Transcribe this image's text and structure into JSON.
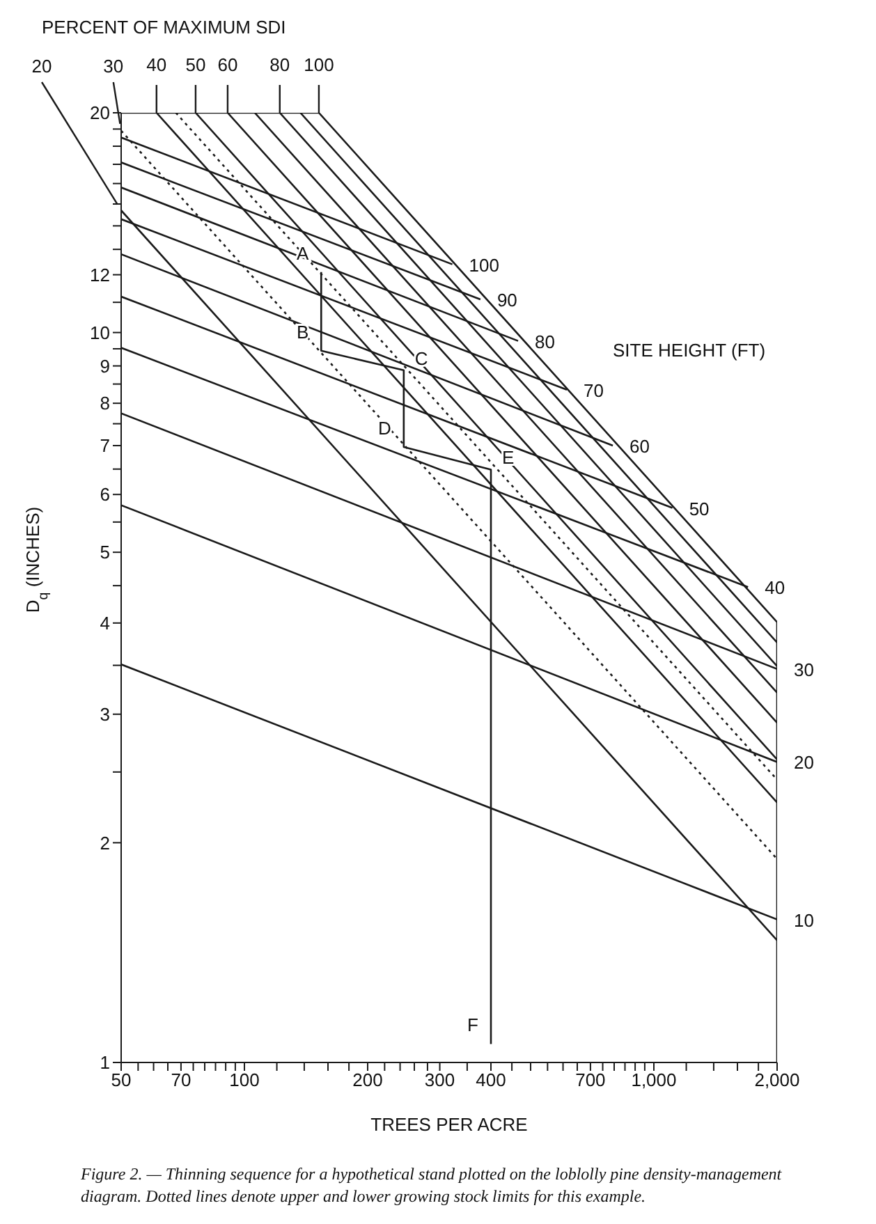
{
  "chart_data": {
    "type": "line",
    "xlabel": "TREES PER ACRE",
    "ylabel": "D$_{q}$ (INCHES)",
    "log": "xy",
    "color": "#1a1a1a",
    "marker": "none",
    "xlim": [
      50,
      2000
    ],
    "ylim": [
      1,
      20
    ],
    "xticks": [
      50,
      {
        "value": 55,
        "label": null
      },
      {
        "value": 60,
        "label": null
      },
      {
        "value": 65,
        "label": null
      },
      70,
      {
        "value": 75,
        "label": null
      },
      {
        "value": 80,
        "label": null
      },
      {
        "value": 85,
        "label": null
      },
      {
        "value": 90,
        "label": null
      },
      {
        "value": 95,
        "label": null
      },
      100,
      {
        "value": 120,
        "label": null
      },
      {
        "value": 140,
        "label": null
      },
      {
        "value": 160,
        "label": null
      },
      {
        "value": 180,
        "label": null
      },
      200,
      {
        "value": 220,
        "label": null
      },
      {
        "value": 240,
        "label": null
      },
      {
        "value": 260,
        "label": null
      },
      {
        "value": 280,
        "label": null
      },
      300,
      {
        "value": 350,
        "label": null
      },
      400,
      {
        "value": 450,
        "label": null
      },
      {
        "value": 500,
        "label": null
      },
      {
        "value": 550,
        "label": null
      },
      {
        "value": 600,
        "label": null
      },
      {
        "value": 650,
        "label": null
      },
      700,
      {
        "value": 750,
        "label": null
      },
      {
        "value": 800,
        "label": null
      },
      {
        "value": 850,
        "label": null
      },
      {
        "value": 900,
        "label": null
      },
      {
        "value": 950,
        "label": null
      },
      {
        "value": 1000,
        "label": "1,000"
      },
      {
        "value": 1200,
        "label": null
      },
      {
        "value": 1400,
        "label": null
      },
      {
        "value": 1600,
        "label": null
      },
      {
        "value": 1800,
        "label": null
      },
      {
        "value": 2000,
        "label": "2,000"
      }
    ],
    "yticks": [
      1,
      2,
      {
        "value": 2.5,
        "label": null
      },
      3,
      {
        "value": 3.5,
        "label": null
      },
      4,
      {
        "value": 4.5,
        "label": null
      },
      5,
      {
        "value": 5.5,
        "label": null
      },
      6,
      {
        "value": 6.5,
        "label": null
      },
      7,
      {
        "value": 7.5,
        "label": null
      },
      8,
      {
        "value": 8.5,
        "label": null
      },
      9,
      {
        "value": 9.5,
        "label": null
      },
      10,
      {
        "value": 11,
        "label": null
      },
      12,
      {
        "value": 13,
        "label": null
      },
      {
        "value": 14,
        "label": null
      },
      {
        "value": 15,
        "label": null
      },
      {
        "value": 16,
        "label": null
      },
      {
        "value": 17,
        "label": null
      },
      {
        "value": 18,
        "label": null
      },
      {
        "value": 19,
        "label": null
      },
      20
    ],
    "series": [
      {
        "name": "100",
        "x": [
          50,
          322
        ],
        "values": [
          18.5,
          12.4
        ]
      },
      {
        "name": "90",
        "x": [
          50,
          377
        ],
        "values": [
          17.1,
          11.1
        ]
      },
      {
        "name": "80",
        "x": [
          50,
          466
        ],
        "values": [
          15.8,
          9.74
        ]
      },
      {
        "name": "70",
        "x": [
          50,
          613
        ],
        "values": [
          14.3,
          8.35
        ]
      },
      {
        "name": "60",
        "x": [
          50,
          794
        ],
        "values": [
          12.8,
          7.0
        ]
      },
      {
        "name": "50",
        "x": [
          50,
          1110
        ],
        "values": [
          11.2,
          5.75
        ]
      },
      {
        "name": "40",
        "x": [
          50,
          1698
        ],
        "values": [
          9.53,
          4.48
        ]
      },
      {
        "name": "30",
        "x": [
          50,
          2000
        ],
        "values": [
          7.75,
          3.46
        ]
      },
      {
        "name": "20",
        "x": [
          50,
          2000
        ],
        "values": [
          5.8,
          2.58
        ]
      },
      {
        "name": "10",
        "x": [
          50,
          2000
        ],
        "values": [
          3.51,
          1.57
        ]
      },
      {
        "name": "20",
        "x": [
          50,
          2000
        ],
        "values": [
          14.7,
          1.47
        ]
      },
      {
        "name": "30",
        "x": [
          50,
          2000
        ],
        "values": [
          18.9,
          1.9
        ],
        "line_style": "dotted"
      },
      {
        "name": "40",
        "x": [
          61,
          2000
        ],
        "values": [
          20,
          2.27
        ]
      },
      {
        "x": [
          68,
          2000
        ],
        "values": [
          20,
          2.44
        ],
        "line_style": "dotted"
      },
      {
        "name": "50",
        "x": [
          76,
          2000
        ],
        "values": [
          20,
          2.6
        ]
      },
      {
        "name": "60",
        "x": [
          91,
          2000
        ],
        "values": [
          20,
          2.92
        ]
      },
      {
        "x": [
          106,
          2000
        ],
        "values": [
          20,
          3.21
        ]
      },
      {
        "name": "80",
        "x": [
          122,
          2000
        ],
        "values": [
          20,
          3.49
        ]
      },
      {
        "x": [
          137,
          2000
        ],
        "values": [
          20,
          3.76
        ]
      },
      {
        "name": "100",
        "x": [
          152,
          2000,
          2000
        ],
        "values": [
          20,
          4.01,
          1
        ]
      },
      {
        "x": [
          50,
          152
        ],
        "values": [
          20,
          20
        ]
      },
      {
        "x": [
          154,
          154,
          245,
          245,
          400,
          400
        ],
        "values": [
          12.1,
          9.44,
          8.88,
          6.97,
          6.49,
          1.06
        ]
      }
    ],
    "annotations": [
      "PERCENT OF MAXIMUM SDI",
      "SITE HEIGHT (FT)",
      {
        "text": "A",
        "x": 154,
        "y": 12.1
      },
      {
        "text": "B",
        "x": 154,
        "y": 9.44
      },
      {
        "text": "C",
        "x": 245,
        "y": 8.88
      },
      {
        "text": "D",
        "x": 245,
        "y": 6.97
      },
      {
        "text": "E",
        "x": 400,
        "y": 6.49
      },
      {
        "text": "F",
        "x": 400,
        "y": 1.06
      },
      "Figure 2. — Thinning sequence for a hypothetical stand plotted on the loblolly pine density-management diagram. Dotted lines denote upper and lower growing stock limits for this example."
    ]
  }
}
